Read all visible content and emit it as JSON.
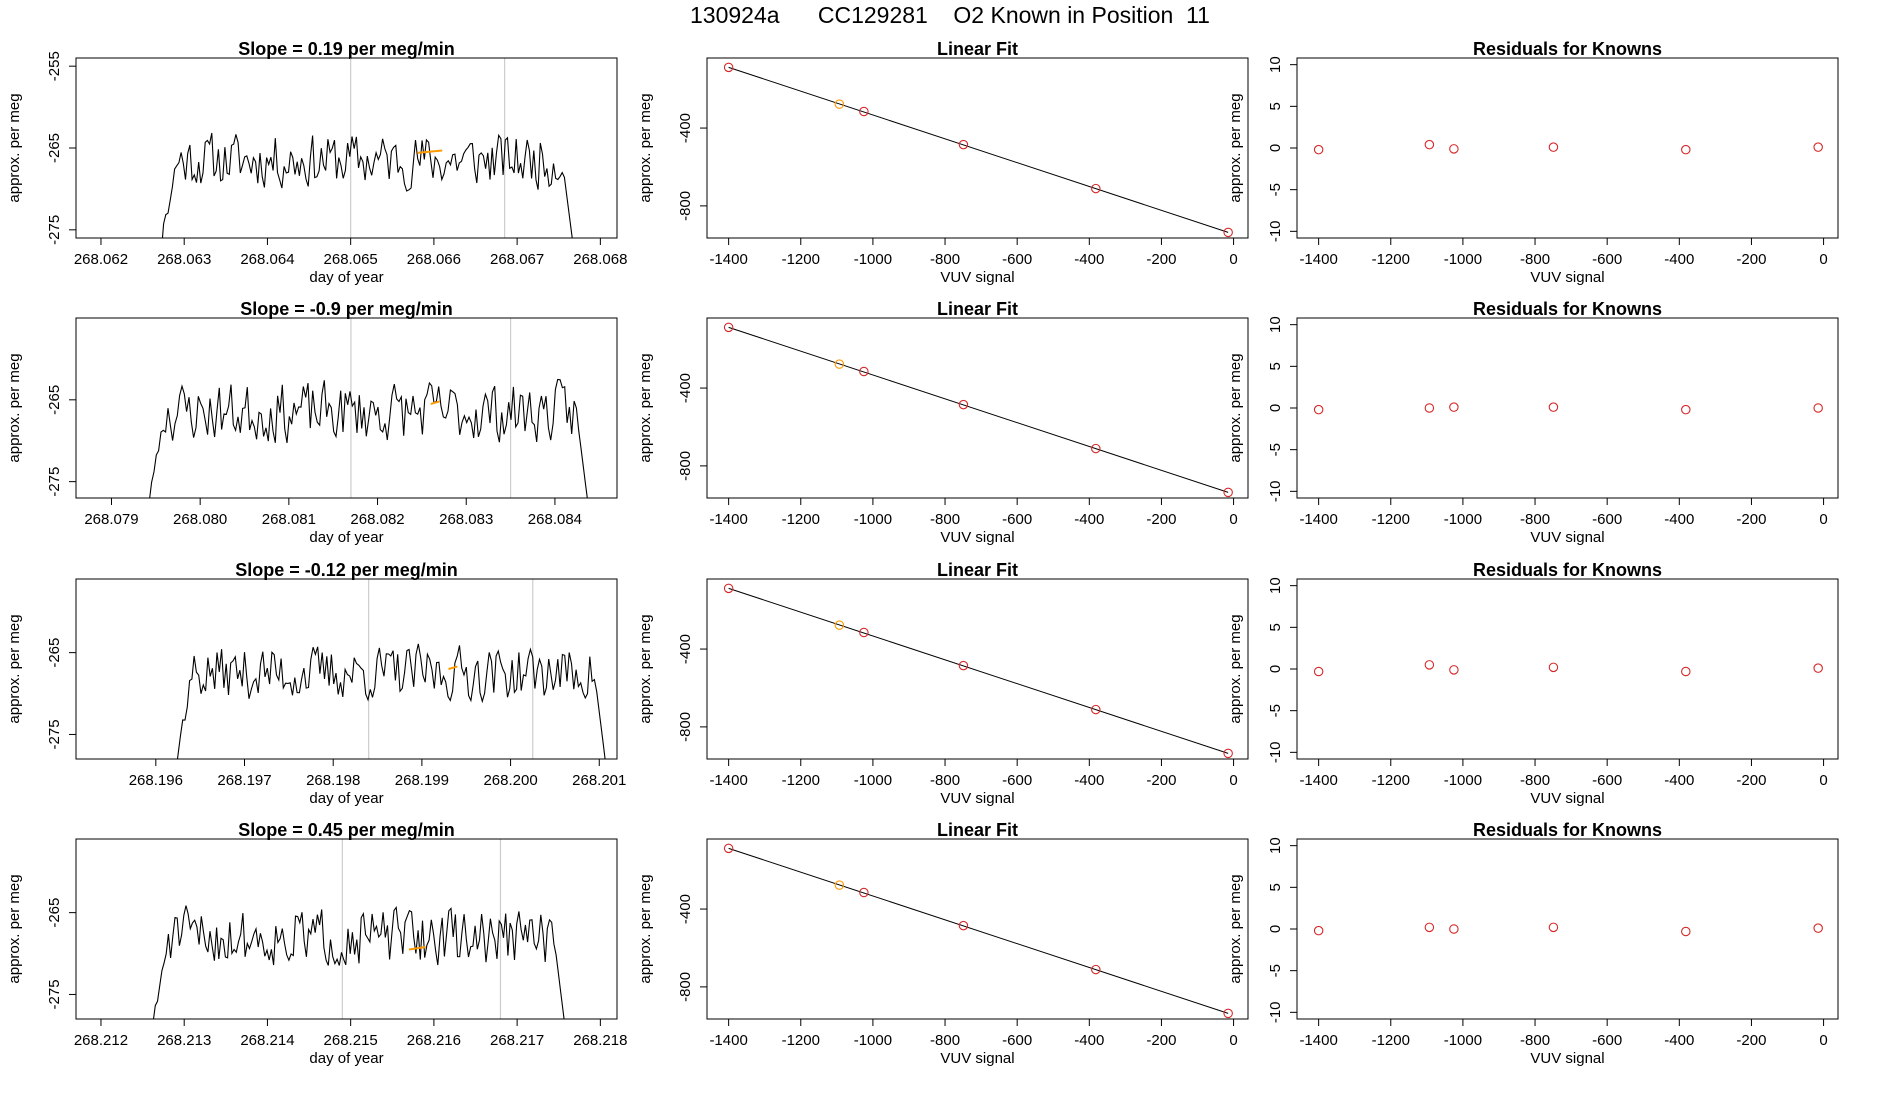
{
  "title": "130924a      CC129281    O2 Known in Position  11",
  "colors": {
    "trace": "#000000",
    "highlight": "#ff9900",
    "residual_point": "#d62728",
    "fit_point": "#d62728",
    "fit_point_alt": "#ff9900",
    "vline": "#cccccc",
    "frame": "#000000"
  },
  "chart_data": [
    {
      "type": "line",
      "title": "Slope =  0.19  per meg/min",
      "xlabel": "day of year",
      "ylabel": "approx. per meg",
      "xlim": [
        268.0617,
        268.0682
      ],
      "ylim": [
        -276,
        -254
      ],
      "xticks": [
        "268.062",
        "268.063",
        "268.064",
        "268.065",
        "268.066",
        "268.067",
        "268.068"
      ],
      "yticks": [
        "-255",
        "-265",
        "-275"
      ],
      "vlines": [
        268.065,
        268.06685
      ],
      "x_start": 268.0627,
      "x_end": 268.0677,
      "base": -266.5,
      "amp": 1.9,
      "seed": 11,
      "highlight": [
        268.0658,
        268.0661,
        -265.6
      ]
    },
    {
      "type": "scatter",
      "title": "Linear Fit",
      "xlabel": "VUV signal",
      "ylabel": "approx. per meg",
      "xlim": [
        -1460,
        40
      ],
      "ylim": [
        -965,
        -40
      ],
      "xticks": [
        "-1400",
        "-1200",
        "-1000",
        "-800",
        "-600",
        "-400",
        "-200",
        "0"
      ],
      "yticks": [
        "-400",
        "-800"
      ],
      "x": [
        -1400,
        -1093,
        -1025,
        -749,
        -382,
        -15
      ],
      "y": [
        -88,
        -277,
        -315,
        -485,
        -711,
        -936
      ],
      "line": [
        [
          -1400,
          -88
        ],
        [
          -15,
          -936
        ]
      ]
    },
    {
      "type": "scatter",
      "title": "Residuals for Knowns",
      "xlabel": "VUV signal",
      "ylabel": "approx. per meg",
      "xlim": [
        -1460,
        40
      ],
      "ylim": [
        -10.8,
        10.8
      ],
      "xticks": [
        "-1400",
        "-1200",
        "-1000",
        "-800",
        "-600",
        "-400",
        "-200",
        "0"
      ],
      "yticks": [
        "10",
        "5",
        "0",
        "-5",
        "-10"
      ],
      "x": [
        -1400,
        -1093,
        -1025,
        -749,
        -382,
        -15
      ],
      "y": [
        -0.2,
        0.4,
        -0.1,
        0.1,
        -0.2,
        0.1
      ]
    },
    {
      "type": "line",
      "title": "Slope =  -0.9  per meg/min",
      "xlabel": "day of year",
      "ylabel": "approx. per meg",
      "xlim": [
        268.0786,
        268.0847
      ],
      "ylim": [
        -277,
        -255
      ],
      "xticks": [
        "268.079",
        "268.080",
        "268.081",
        "268.082",
        "268.083",
        "268.084"
      ],
      "yticks": [
        "-265",
        "-275"
      ],
      "vlines": [
        268.0817,
        268.0835
      ],
      "x_start": 268.0794,
      "x_end": 268.0844,
      "base": -266.5,
      "amp": 2.1,
      "seed": 23,
      "highlight": [
        268.0826,
        268.0827,
        -265.5
      ]
    },
    {
      "type": "scatter",
      "title": "Linear Fit",
      "xlabel": "VUV signal",
      "ylabel": "approx. per meg",
      "xlim": [
        -1460,
        40
      ],
      "ylim": [
        -965,
        -40
      ],
      "xticks": [
        "-1400",
        "-1200",
        "-1000",
        "-800",
        "-600",
        "-400",
        "-200",
        "0"
      ],
      "yticks": [
        "-400",
        "-800"
      ],
      "x": [
        -1400,
        -1093,
        -1025,
        -749,
        -382,
        -15
      ],
      "y": [
        -88,
        -277,
        -315,
        -485,
        -711,
        -936
      ],
      "line": [
        [
          -1400,
          -88
        ],
        [
          -15,
          -936
        ]
      ]
    },
    {
      "type": "scatter",
      "title": "Residuals for Knowns",
      "xlabel": "VUV signal",
      "ylabel": "approx. per meg",
      "xlim": [
        -1460,
        40
      ],
      "ylim": [
        -10.8,
        10.8
      ],
      "xticks": [
        "-1400",
        "-1200",
        "-1000",
        "-800",
        "-600",
        "-400",
        "-200",
        "0"
      ],
      "yticks": [
        "10",
        "5",
        "0",
        "-5",
        "-10"
      ],
      "x": [
        -1400,
        -1093,
        -1025,
        -749,
        -382,
        -15
      ],
      "y": [
        -0.2,
        0.0,
        0.1,
        0.1,
        -0.2,
        0.0
      ]
    },
    {
      "type": "line",
      "title": "Slope =  -0.12  per meg/min",
      "xlabel": "day of year",
      "ylabel": "approx. per meg",
      "xlim": [
        268.1951,
        268.2012
      ],
      "ylim": [
        -278,
        -256
      ],
      "xticks": [
        "268.196",
        "268.197",
        "268.198",
        "268.199",
        "268.200",
        "268.201"
      ],
      "yticks": [
        "-265",
        "-275"
      ],
      "vlines": [
        268.1984,
        268.20025
      ],
      "x_start": 268.1962,
      "x_end": 268.2011,
      "base": -267.5,
      "amp": 1.9,
      "seed": 37,
      "highlight": [
        268.1993,
        268.1994,
        -267.0
      ]
    },
    {
      "type": "scatter",
      "title": "Linear Fit",
      "xlabel": "VUV signal",
      "ylabel": "approx. per meg",
      "xlim": [
        -1460,
        40
      ],
      "ylim": [
        -965,
        -40
      ],
      "xticks": [
        "-1400",
        "-1200",
        "-1000",
        "-800",
        "-600",
        "-400",
        "-200",
        "0"
      ],
      "yticks": [
        "-400",
        "-800"
      ],
      "x": [
        -1400,
        -1093,
        -1025,
        -749,
        -382,
        -15
      ],
      "y": [
        -88,
        -277,
        -315,
        -485,
        -711,
        -936
      ],
      "line": [
        [
          -1400,
          -88
        ],
        [
          -15,
          -936
        ]
      ]
    },
    {
      "type": "scatter",
      "title": "Residuals for Knowns",
      "xlabel": "VUV signal",
      "ylabel": "approx. per meg",
      "xlim": [
        -1460,
        40
      ],
      "ylim": [
        -10.8,
        10.8
      ],
      "xticks": [
        "-1400",
        "-1200",
        "-1000",
        "-800",
        "-600",
        "-400",
        "-200",
        "0"
      ],
      "yticks": [
        "10",
        "5",
        "0",
        "-5",
        "-10"
      ],
      "x": [
        -1400,
        -1093,
        -1025,
        -749,
        -382,
        -15
      ],
      "y": [
        -0.3,
        0.5,
        -0.1,
        0.2,
        -0.3,
        0.1
      ]
    },
    {
      "type": "line",
      "title": "Slope =  0.45  per meg/min",
      "xlabel": "day of year",
      "ylabel": "approx. per meg",
      "xlim": [
        268.2117,
        268.2182
      ],
      "ylim": [
        -278,
        -256
      ],
      "xticks": [
        "268.212",
        "268.213",
        "268.214",
        "268.215",
        "268.216",
        "268.217",
        "268.218"
      ],
      "yticks": [
        "-265",
        "-275"
      ],
      "vlines": [
        268.2149,
        268.2168
      ],
      "x_start": 268.2126,
      "x_end": 268.2176,
      "base": -268.0,
      "amp": 2.0,
      "seed": 51,
      "highlight": [
        268.2157,
        268.2159,
        -269.5
      ]
    },
    {
      "type": "scatter",
      "title": "Linear Fit",
      "xlabel": "VUV signal",
      "ylabel": "approx. per meg",
      "xlim": [
        -1460,
        40
      ],
      "ylim": [
        -965,
        -40
      ],
      "xticks": [
        "-1400",
        "-1200",
        "-1000",
        "-800",
        "-600",
        "-400",
        "-200",
        "0"
      ],
      "yticks": [
        "-400",
        "-800"
      ],
      "x": [
        -1400,
        -1093,
        -1025,
        -749,
        -382,
        -15
      ],
      "y": [
        -88,
        -277,
        -315,
        -485,
        -711,
        -936
      ],
      "line": [
        [
          -1400,
          -88
        ],
        [
          -15,
          -936
        ]
      ]
    },
    {
      "type": "scatter",
      "title": "Residuals for Knowns",
      "xlabel": "VUV signal",
      "ylabel": "approx. per meg",
      "xlim": [
        -1460,
        40
      ],
      "ylim": [
        -10.8,
        10.8
      ],
      "xticks": [
        "-1400",
        "-1200",
        "-1000",
        "-800",
        "-600",
        "-400",
        "-200",
        "0"
      ],
      "yticks": [
        "10",
        "5",
        "0",
        "-5",
        "-10"
      ],
      "x": [
        -1400,
        -1093,
        -1025,
        -749,
        -382,
        -15
      ],
      "y": [
        -0.2,
        0.2,
        0.0,
        0.2,
        -0.3,
        0.1
      ]
    }
  ]
}
